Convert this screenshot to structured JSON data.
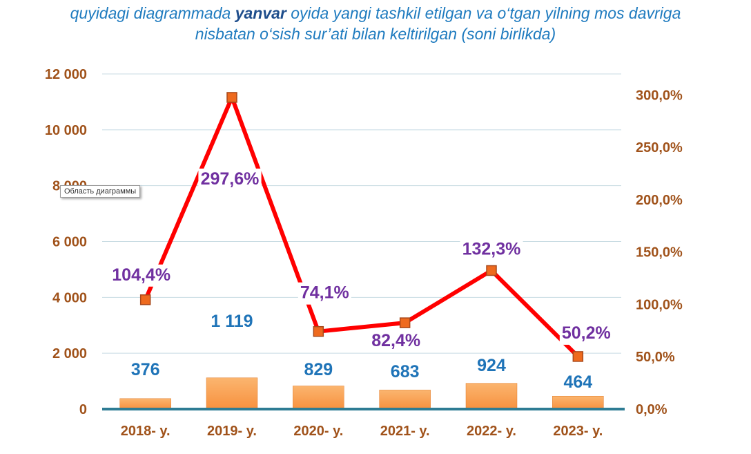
{
  "title": {
    "part1": "quyidagi diagrammada ",
    "emphasis": "yanvar",
    "part2": " oyida yangi tashkil etilgan va o‘tgan yilning mos davriga",
    "line2": "nisbatan o‘sish sur’ati bilan keltirilgan (soni birlikda)"
  },
  "tooltip": "Область диаграммы",
  "colors": {
    "title": "#1f7bbf",
    "axis_labels": "#a0521a",
    "bars": "#f7913f",
    "bar_labels": "#1f74b8",
    "line": "#ff0000",
    "markers": "#ee6a1e",
    "pct_labels": "#7030a0",
    "baseline": "#2e7c94",
    "grid": "#c8dbe3"
  },
  "chart_data": {
    "type": "bar+line",
    "categories": [
      "2018- y.",
      "2019- y.",
      "2020- y.",
      "2021- y.",
      "2022- y.",
      "2023- y."
    ],
    "series": [
      {
        "type": "bar",
        "axis": "left",
        "values": [
          376,
          1119,
          829,
          683,
          924,
          464
        ],
        "labels": [
          "376",
          "1 119",
          "829",
          "683",
          "924",
          "464"
        ]
      },
      {
        "type": "line",
        "axis": "right",
        "values": [
          104.4,
          297.6,
          74.1,
          82.4,
          132.3,
          50.2
        ],
        "labels": [
          "104,4%",
          "297,6%",
          "74,1%",
          "82,4%",
          "132,3%",
          "50,2%"
        ]
      }
    ],
    "y_left": {
      "range": [
        0,
        12000
      ],
      "ticks": [
        {
          "v": 0,
          "label": "0"
        },
        {
          "v": 2000,
          "label": "2 000"
        },
        {
          "v": 4000,
          "label": "4 000"
        },
        {
          "v": 6000,
          "label": "6 000"
        },
        {
          "v": 8000,
          "label": "8 000"
        },
        {
          "v": 10000,
          "label": "10 000"
        },
        {
          "v": 12000,
          "label": "12 000"
        }
      ]
    },
    "y_right": {
      "range": [
        0,
        320
      ],
      "ticks": [
        {
          "v": 0,
          "label": "0,0%"
        },
        {
          "v": 50,
          "label": "50,0%"
        },
        {
          "v": 100,
          "label": "100,0%"
        },
        {
          "v": 150,
          "label": "150,0%"
        },
        {
          "v": 200,
          "label": "200,0%"
        },
        {
          "v": 250,
          "label": "250,0%"
        },
        {
          "v": 300,
          "label": "300,0%"
        }
      ]
    },
    "grid": true,
    "legend": "none"
  }
}
